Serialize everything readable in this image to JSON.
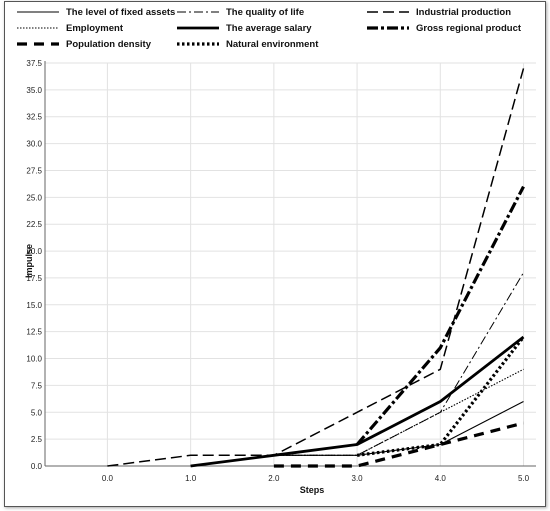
{
  "chart_data": {
    "type": "line",
    "xlabel": "Steps",
    "ylabel": "Impulse",
    "x": [
      0.0,
      1.0,
      2.0,
      3.0,
      4.0,
      5.0
    ],
    "x_tick_labels": [
      "0.0",
      "1.0",
      "2.0",
      "3.0",
      "4.0",
      "5.0"
    ],
    "xlim": [
      -0.75,
      5.15
    ],
    "ylim": [
      0,
      37.5
    ],
    "y_ticks": [
      0.0,
      2.5,
      5.0,
      7.5,
      10.0,
      12.5,
      15.0,
      17.5,
      20.0,
      22.5,
      25.0,
      27.5,
      30.0,
      32.5,
      35.0,
      37.5
    ],
    "y_tick_labels": [
      "0.0",
      "2.5",
      "5.0",
      "7.5",
      "10.0",
      "12.5",
      "15.0",
      "17.5",
      "20.0",
      "22.5",
      "25.0",
      "27.5",
      "30.0",
      "32.5",
      "35.0",
      "37.5"
    ],
    "grid": true,
    "legend_position": "top",
    "series": [
      {
        "name": "The level of fixed assets",
        "x": [
          1.0,
          2.0,
          3.0,
          4.0,
          5.0
        ],
        "values": [
          0,
          1,
          1,
          2,
          6
        ],
        "line_style": "solid-thin"
      },
      {
        "name": "The quality of life",
        "x": [
          1.0,
          2.0,
          3.0,
          4.0,
          5.0
        ],
        "values": [
          0,
          1,
          1,
          5,
          18
        ],
        "line_style": "dash-dot-thin"
      },
      {
        "name": "Industrial production",
        "x": [
          0.0,
          1.0,
          2.0,
          3.0,
          4.0,
          5.0
        ],
        "values": [
          0,
          1,
          1,
          5,
          9,
          37
        ],
        "line_style": "long-dash"
      },
      {
        "name": "Employment",
        "x": [
          1.0,
          2.0,
          3.0,
          4.0,
          5.0
        ],
        "values": [
          0,
          1,
          1,
          5,
          9
        ],
        "line_style": "dotted-thin"
      },
      {
        "name": "The average salary",
        "x": [
          1.0,
          2.0,
          3.0,
          4.0,
          5.0
        ],
        "values": [
          0,
          1,
          2,
          6,
          12
        ],
        "line_style": "solid-thick"
      },
      {
        "name": "Gross  regional product",
        "x": [
          3.0,
          4.0,
          5.0
        ],
        "values": [
          2,
          11,
          26
        ],
        "line_style": "dash-dot-thick"
      },
      {
        "name": "Population density",
        "x": [
          2.0,
          3.0,
          4.0,
          5.0
        ],
        "values": [
          0,
          0,
          2,
          4
        ],
        "line_style": "dash-thick"
      },
      {
        "name": "Natural environment",
        "x": [
          3.0,
          4.0,
          5.0
        ],
        "values": [
          1,
          2,
          12
        ],
        "line_style": "dotted-thick"
      }
    ]
  }
}
